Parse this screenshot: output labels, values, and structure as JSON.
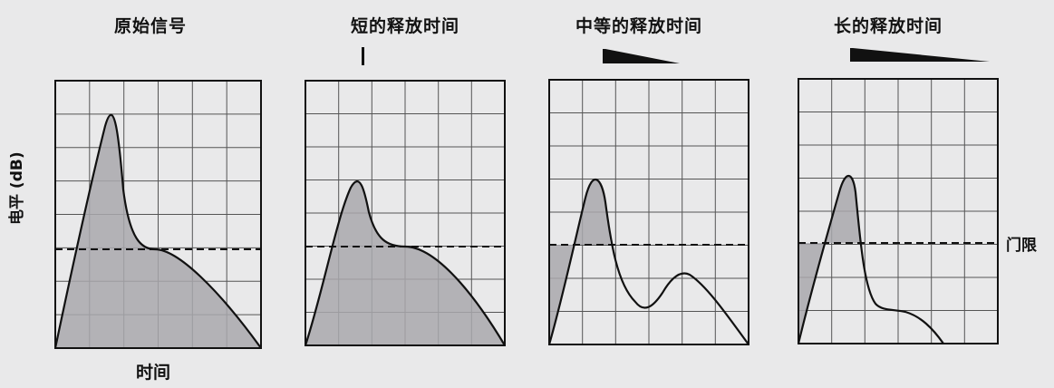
{
  "diagram": {
    "y_axis_label": "电平 (dB)",
    "x_axis_label": "时间",
    "threshold_label": "门限",
    "panels": [
      {
        "title": "原始信号",
        "release_indicator": "none"
      },
      {
        "title": "短的释放时间",
        "release_indicator": "bar"
      },
      {
        "title": "中等的释放时间",
        "release_indicator": "wedge-medium"
      },
      {
        "title": "长的释放时间",
        "release_indicator": "wedge-long"
      }
    ]
  }
}
